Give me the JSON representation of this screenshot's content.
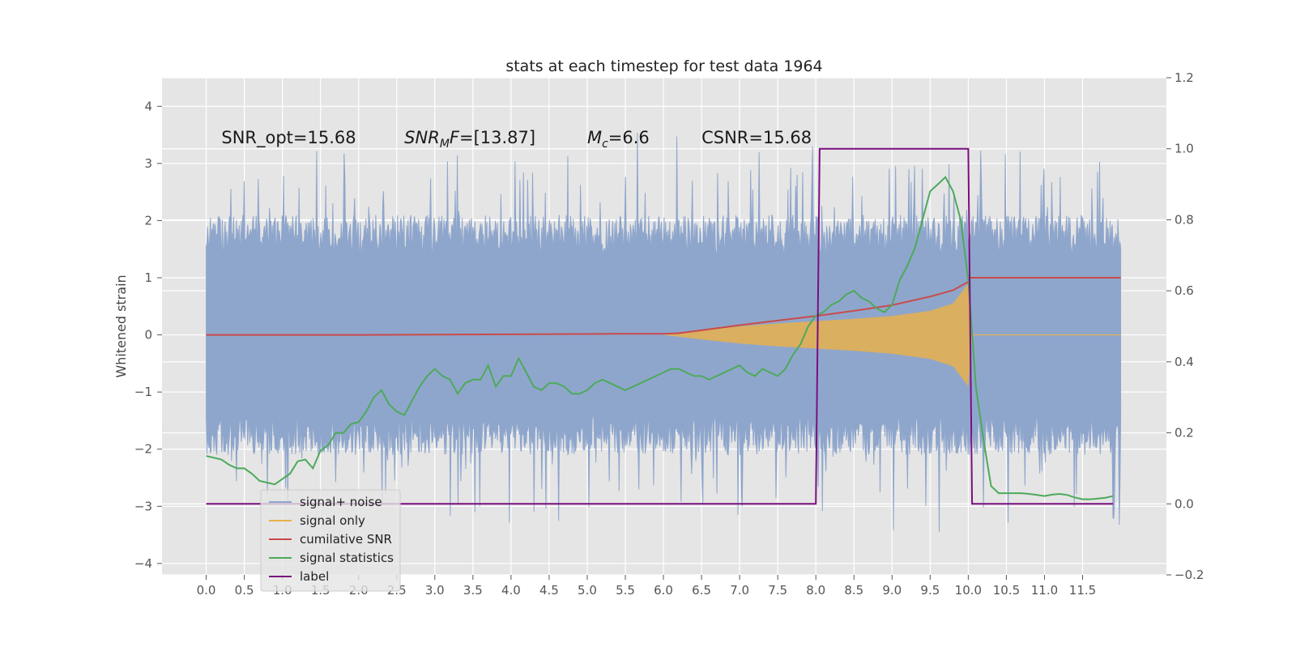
{
  "chart_data": {
    "type": "line",
    "title": "stats at each timestep for test data 1964",
    "xlabel": "",
    "ylabel": "Whitened strain",
    "y2label": "",
    "xlim": [
      -0.58,
      12.6
    ],
    "ylim": [
      -4.2,
      4.5
    ],
    "y2lim": [
      -0.2,
      1.2
    ],
    "xticks": [
      "0.0",
      "0.5",
      "1.0",
      "1.5",
      "2.0",
      "2.5",
      "3.0",
      "3.5",
      "4.0",
      "4.5",
      "5.0",
      "5.5",
      "6.0",
      "6.5",
      "7.0",
      "7.5",
      "8.0",
      "8.5",
      "9.0",
      "9.5",
      "10.0",
      "10.5",
      "11.0",
      "11.5"
    ],
    "yticks": [
      "4",
      "3",
      "2",
      "1",
      "0",
      "−1",
      "−2",
      "−3",
      "−4"
    ],
    "y2ticks": [
      "1.2",
      "1.0",
      "0.8",
      "0.6",
      "0.4",
      "0.2",
      "0.0",
      "−0.2"
    ],
    "grid": true,
    "legend_position": "lower-left",
    "annotations": [
      {
        "id": "snr-opt",
        "text": "SNR_opt=15.68",
        "x": 0.2,
        "y": 3.35
      },
      {
        "id": "snr-mf",
        "text": "SNR",
        "sub": "M",
        "rest": "F=[13.87]",
        "x": 2.6,
        "y": 3.35
      },
      {
        "id": "mc",
        "text": "M",
        "sub": "c",
        "rest": "=6.6",
        "x": 5.0,
        "y": 3.35
      },
      {
        "id": "csnr",
        "text": "CSNR=15.68",
        "x": 6.5,
        "y": 3.35
      }
    ],
    "series": [
      {
        "name": "signal+ noise",
        "axis": "left",
        "color": "#8fa6cc",
        "description": "whitened noisy strain, 0.0 to 12.0 s, roughly within ±2 with spikes to ±4",
        "x_range": [
          0.0,
          12.0
        ],
        "envelope": [
          1.4,
          2.0,
          2.2
        ]
      },
      {
        "name": "signal only",
        "axis": "left",
        "color": "#e8b04c",
        "description": "chirp signal growing from 6.0 s to merger near 10.0 s, zero afterwards",
        "x": [
          6.0,
          6.5,
          7.0,
          7.5,
          8.0,
          8.5,
          9.0,
          9.5,
          9.8,
          10.0,
          10.05
        ],
        "amplitude": [
          0.0,
          0.08,
          0.15,
          0.2,
          0.24,
          0.28,
          0.33,
          0.42,
          0.55,
          0.9,
          0.0
        ]
      },
      {
        "name": "cumilative SNR",
        "axis": "left",
        "color": "#c84b4b",
        "x": [
          0.0,
          2.0,
          4.0,
          5.5,
          6.0,
          6.2,
          6.5,
          7.0,
          7.5,
          8.0,
          8.5,
          9.0,
          9.5,
          9.8,
          10.0,
          10.02,
          12.0
        ],
        "y": [
          0.0,
          0.0,
          0.01,
          0.02,
          0.02,
          0.03,
          0.08,
          0.17,
          0.25,
          0.33,
          0.42,
          0.52,
          0.67,
          0.78,
          0.93,
          1.0,
          1.0
        ]
      },
      {
        "name": "signal statistics",
        "axis": "right",
        "color": "#4caa5a",
        "x": [
          0.0,
          0.1,
          0.2,
          0.3,
          0.4,
          0.5,
          0.6,
          0.7,
          0.8,
          0.9,
          1.0,
          1.1,
          1.2,
          1.3,
          1.4,
          1.5,
          1.6,
          1.7,
          1.8,
          1.9,
          2.0,
          2.1,
          2.2,
          2.3,
          2.4,
          2.5,
          2.6,
          2.7,
          2.8,
          2.9,
          3.0,
          3.1,
          3.2,
          3.3,
          3.4,
          3.5,
          3.6,
          3.7,
          3.8,
          3.9,
          4.0,
          4.1,
          4.2,
          4.3,
          4.4,
          4.5,
          4.6,
          4.7,
          4.8,
          4.9,
          5.0,
          5.1,
          5.2,
          5.3,
          5.4,
          5.5,
          5.6,
          5.7,
          5.8,
          5.9,
          6.0,
          6.1,
          6.2,
          6.3,
          6.4,
          6.5,
          6.6,
          6.7,
          6.8,
          6.9,
          7.0,
          7.1,
          7.2,
          7.3,
          7.4,
          7.5,
          7.6,
          7.7,
          7.8,
          7.9,
          8.0,
          8.1,
          8.2,
          8.3,
          8.4,
          8.5,
          8.6,
          8.7,
          8.8,
          8.9,
          9.0,
          9.1,
          9.2,
          9.3,
          9.4,
          9.5,
          9.6,
          9.7,
          9.8,
          9.9,
          10.0,
          10.1,
          10.2,
          10.3,
          10.4,
          10.5,
          10.6,
          10.7,
          10.8,
          10.9,
          11.0,
          11.1,
          11.2,
          11.3,
          11.4,
          11.5,
          11.6,
          11.7,
          11.8,
          11.9
        ],
        "y": [
          0.135,
          0.13,
          0.125,
          0.11,
          0.1,
          0.1,
          0.085,
          0.065,
          0.06,
          0.055,
          0.07,
          0.085,
          0.12,
          0.125,
          0.1,
          0.15,
          0.165,
          0.2,
          0.2,
          0.225,
          0.23,
          0.26,
          0.3,
          0.32,
          0.28,
          0.26,
          0.25,
          0.29,
          0.33,
          0.36,
          0.38,
          0.36,
          0.35,
          0.31,
          0.34,
          0.35,
          0.35,
          0.39,
          0.33,
          0.36,
          0.36,
          0.41,
          0.37,
          0.33,
          0.32,
          0.34,
          0.34,
          0.33,
          0.31,
          0.31,
          0.32,
          0.34,
          0.35,
          0.34,
          0.33,
          0.32,
          0.33,
          0.34,
          0.35,
          0.36,
          0.37,
          0.38,
          0.38,
          0.37,
          0.36,
          0.36,
          0.35,
          0.36,
          0.37,
          0.38,
          0.39,
          0.37,
          0.36,
          0.38,
          0.37,
          0.36,
          0.38,
          0.42,
          0.45,
          0.5,
          0.53,
          0.54,
          0.56,
          0.57,
          0.59,
          0.6,
          0.58,
          0.57,
          0.55,
          0.54,
          0.56,
          0.63,
          0.67,
          0.72,
          0.8,
          0.88,
          0.9,
          0.92,
          0.88,
          0.8,
          0.63,
          0.33,
          0.18,
          0.05,
          0.03,
          0.03,
          0.03,
          0.03,
          0.028,
          0.025,
          0.022,
          0.026,
          0.028,
          0.025,
          0.018,
          0.013,
          0.013,
          0.015,
          0.017,
          0.022
        ]
      },
      {
        "name": "label",
        "axis": "right",
        "color": "#7a0f7f",
        "x": [
          0.0,
          8.0,
          8.05,
          10.0,
          10.05,
          11.9
        ],
        "y": [
          0.0,
          0.0,
          1.0,
          1.0,
          0.0,
          0.0
        ]
      }
    ]
  }
}
